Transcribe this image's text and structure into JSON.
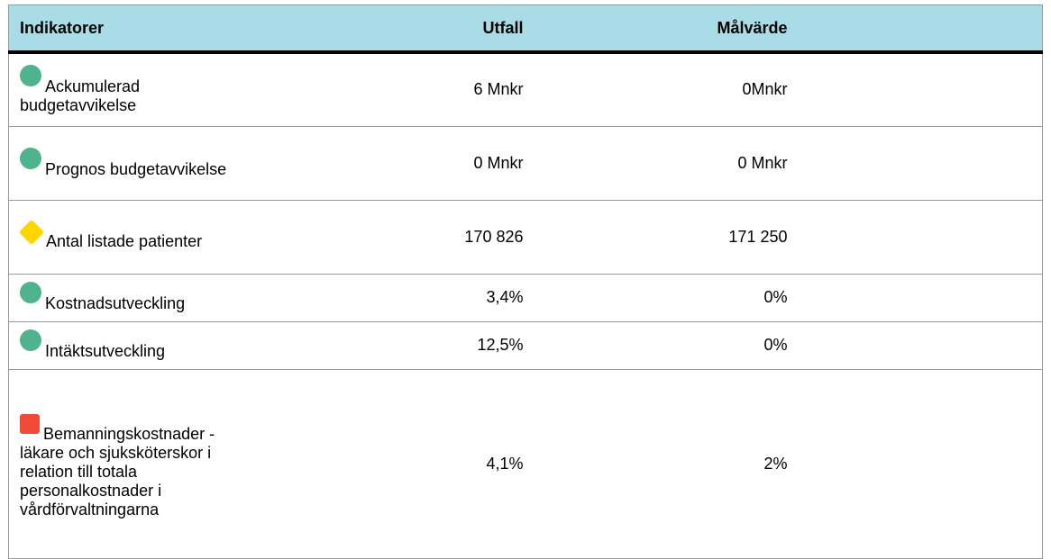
{
  "table": {
    "header": [
      "Indikatorer",
      "Utfall",
      "Målvärde"
    ],
    "rows": [
      [
        "Ackumulerad budgetavvikelse",
        "6 Mnkr",
        "0Mnkr"
      ],
      [
        "Prognos budgetavvikelse",
        "0 Mnkr",
        "0 Mnkr"
      ],
      [
        "Antal listade patienter",
        "170 826",
        "171 250"
      ],
      [
        "Kostnadsutveckling",
        "3,4%",
        "0%"
      ],
      [
        "Intäktsutveckling",
        "12,5%",
        "0%"
      ],
      [
        "Bemanningskostnader - läkare och sjuksköterskor i relation till totala personalkostnader i vårdförvaltningarna",
        "4,1%",
        "2%"
      ]
    ]
  }
}
